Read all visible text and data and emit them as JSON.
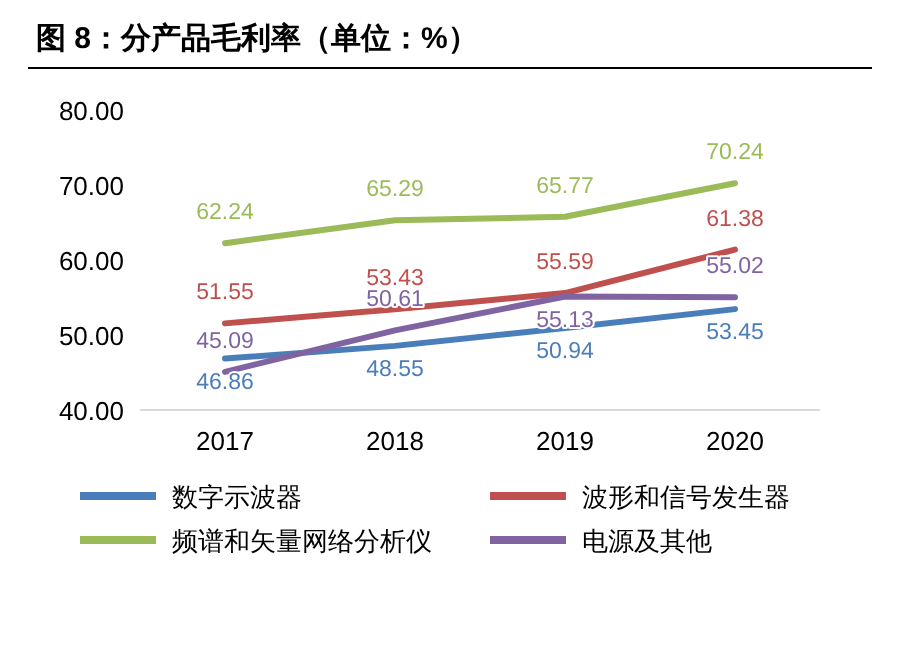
{
  "chart_data": {
    "type": "line",
    "title": "图 8：分产品毛利率（单位：%）",
    "categories": [
      "2017",
      "2018",
      "2019",
      "2020"
    ],
    "series": [
      {
        "name": "数字示波器",
        "color": "#4a7ebb",
        "values": [
          46.86,
          48.55,
          50.94,
          53.45
        ]
      },
      {
        "name": "波形和信号发生器",
        "color": "#c0504d",
        "values": [
          51.55,
          53.43,
          55.59,
          61.38
        ]
      },
      {
        "name": "频谱和矢量网络分析仪",
        "color": "#9bbb59",
        "values": [
          62.24,
          65.29,
          65.77,
          70.24
        ]
      },
      {
        "name": "电源及其他",
        "color": "#8064a2",
        "values": [
          45.09,
          50.61,
          55.13,
          55.02
        ]
      }
    ],
    "ylim": [
      40,
      80
    ],
    "yticks": [
      {
        "value": 40,
        "label": "40.00"
      },
      {
        "value": 50,
        "label": "50.00"
      },
      {
        "value": 60,
        "label": "60.00"
      },
      {
        "value": 70,
        "label": "70.00"
      },
      {
        "value": 80,
        "label": "80.00"
      }
    ],
    "data_labels": true,
    "legend": "bottom",
    "marker": "none",
    "line_style": "solid",
    "grid": false
  }
}
